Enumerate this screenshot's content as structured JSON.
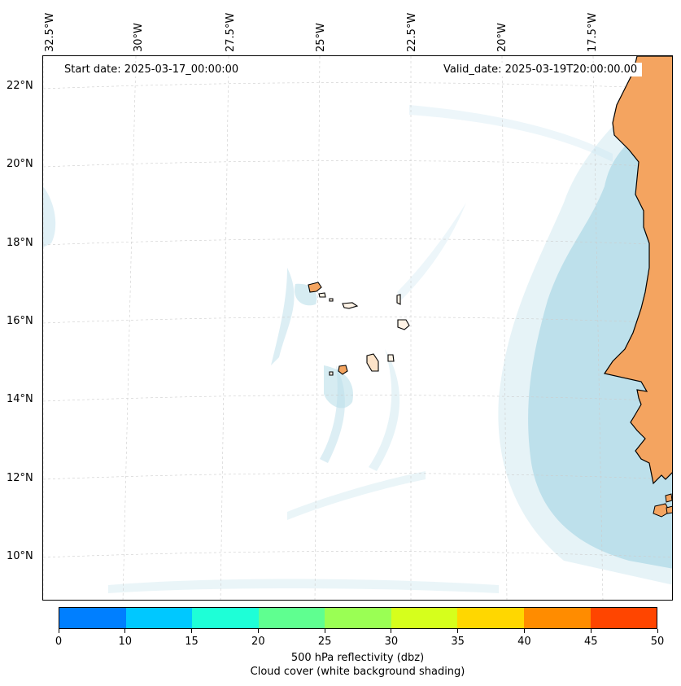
{
  "map": {
    "start_date": "Start date: 2025-03-17_00:00:00",
    "valid_date": "Valid_date: 2025-03-19T20:00:00.00",
    "lon_labels": [
      "32.5°W",
      "30°W",
      "27.5°W",
      "25°W",
      "22.5°W",
      "20°W",
      "17.5°W"
    ],
    "lat_labels": [
      "22°N",
      "20°N",
      "18°N",
      "16°N",
      "14°N",
      "12°N",
      "10°N"
    ],
    "land_color": "#f4a460",
    "cloud_color": "#add8e6",
    "coastline_color": "#000000",
    "grid": true
  },
  "colorbar": {
    "colors": [
      "#007fff",
      "#00c8ff",
      "#1effd7",
      "#5fff90",
      "#9aff54",
      "#d6ff1c",
      "#ffd700",
      "#ff8c00",
      "#ff4500"
    ],
    "tick_labels": [
      "0",
      "10",
      "15",
      "20",
      "25",
      "30",
      "35",
      "40",
      "45",
      "50"
    ],
    "title_line1": "500 hPa reflectivity (dbz)",
    "title_line2": "Cloud cover (white background shading)"
  }
}
